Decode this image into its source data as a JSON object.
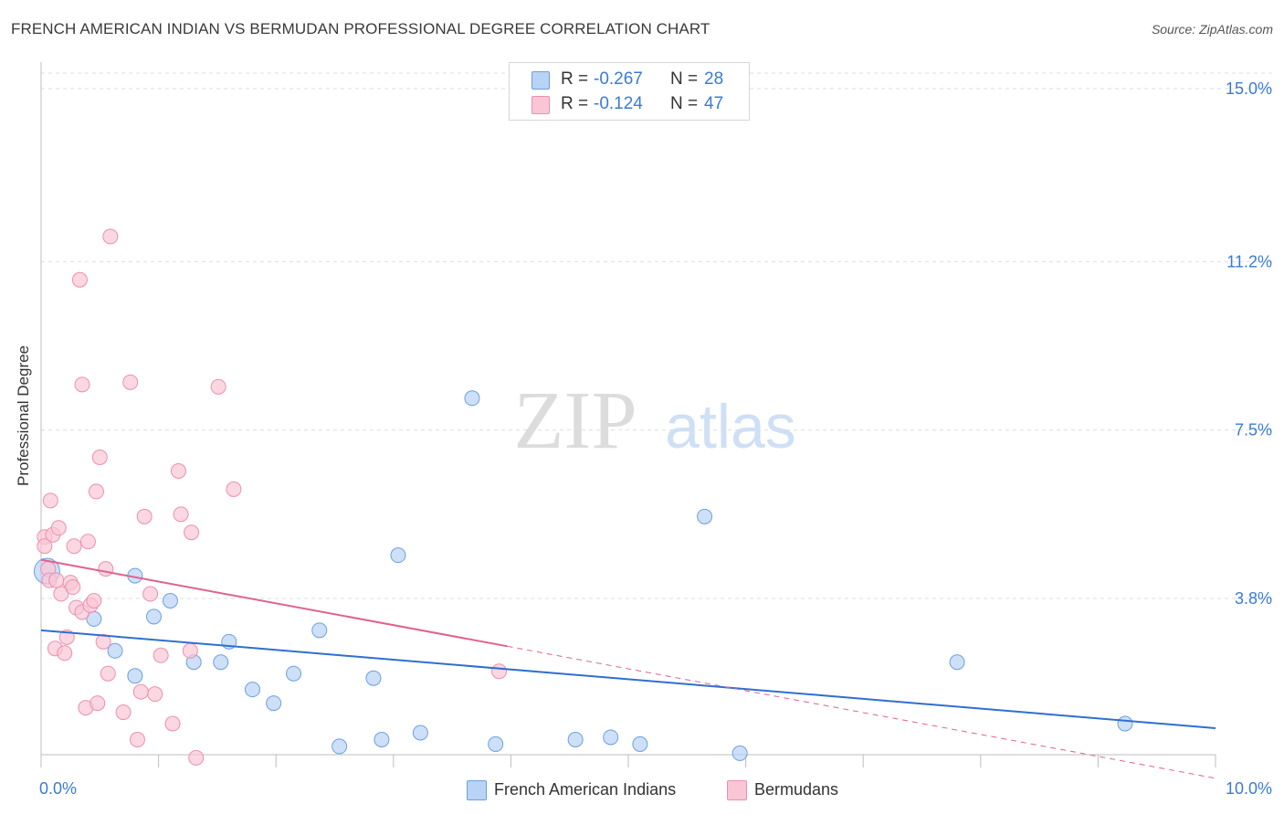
{
  "title": "FRENCH AMERICAN INDIAN VS BERMUDAN PROFESSIONAL DEGREE CORRELATION CHART",
  "source": "Source: ZipAtlas.com",
  "watermark": {
    "zip": "ZIP",
    "atlas": "atlas"
  },
  "legend_top": {
    "rows": [
      {
        "r_label": "R =",
        "r_value": "-0.267",
        "n_label": "N =",
        "n_value": "28",
        "color": "#b8d3f5",
        "border": "#6b9fe0"
      },
      {
        "r_label": "R =",
        "r_value": "-0.124",
        "n_label": "N =",
        "n_value": "47",
        "color": "#f9c6d6",
        "border": "#ec8fae"
      }
    ]
  },
  "legend_bottom": [
    {
      "label": "French American Indians",
      "color": "#b8d3f5",
      "border": "#6b9fe0"
    },
    {
      "label": "Bermudans",
      "color": "#f9c6d6",
      "border": "#ec8fae"
    }
  ],
  "chart_data": {
    "type": "scatter",
    "title": "FRENCH AMERICAN INDIAN VS BERMUDAN PROFESSIONAL DEGREE CORRELATION CHART",
    "xlabel": "",
    "ylabel": "Professional Degree",
    "xlim": [
      0,
      10
    ],
    "ylim": [
      0,
      15.5
    ],
    "x_ticks_labels": [
      "0.0%",
      "10.0%"
    ],
    "y_ticks": [
      3.8,
      7.5,
      11.2,
      15.0
    ],
    "y_ticks_labels": [
      "3.8%",
      "7.5%",
      "11.2%",
      "15.0%"
    ],
    "grid": true,
    "legend_position": "top-center",
    "series": [
      {
        "name": "French American Indians",
        "color": "#6b9fe0",
        "fill": "#b8d3f5",
        "trend_color": "#2f6fd0",
        "trend": {
          "x0": 0,
          "y0": 3.1,
          "x1": 10,
          "y1": 0.95
        },
        "points": [
          [
            0.05,
            4.4
          ],
          [
            0.45,
            3.35
          ],
          [
            0.63,
            2.65
          ],
          [
            0.8,
            4.3
          ],
          [
            0.8,
            2.1
          ],
          [
            0.96,
            3.4
          ],
          [
            1.1,
            3.75
          ],
          [
            1.3,
            2.4
          ],
          [
            1.53,
            2.4
          ],
          [
            1.6,
            2.85
          ],
          [
            1.8,
            1.8
          ],
          [
            1.98,
            1.5
          ],
          [
            2.15,
            2.15
          ],
          [
            2.37,
            3.1
          ],
          [
            2.54,
            0.55
          ],
          [
            2.83,
            2.05
          ],
          [
            2.9,
            0.7
          ],
          [
            3.04,
            4.75
          ],
          [
            3.23,
            0.85
          ],
          [
            3.67,
            8.2
          ],
          [
            3.87,
            0.6
          ],
          [
            4.55,
            0.7
          ],
          [
            4.85,
            0.75
          ],
          [
            5.1,
            0.6
          ],
          [
            5.65,
            5.6
          ],
          [
            5.95,
            0.4
          ],
          [
            7.8,
            2.4
          ],
          [
            9.23,
            1.05
          ]
        ]
      },
      {
        "name": "Bermudans",
        "color": "#ec8fae",
        "fill": "#f9c6d6",
        "trend_color": "#e0628e",
        "trend": {
          "x0": 0,
          "y0": 4.65,
          "x1": 3.97,
          "y1": 2.75
        },
        "trend_dashed": {
          "x0": 3.97,
          "y0": 2.75,
          "x1": 10,
          "y1": -0.15
        },
        "points": [
          [
            0.03,
            5.15
          ],
          [
            0.03,
            4.95
          ],
          [
            0.06,
            4.45
          ],
          [
            0.07,
            4.2
          ],
          [
            0.08,
            5.95
          ],
          [
            0.1,
            5.2
          ],
          [
            0.12,
            2.7
          ],
          [
            0.13,
            4.2
          ],
          [
            0.15,
            5.35
          ],
          [
            0.17,
            3.9
          ],
          [
            0.2,
            2.6
          ],
          [
            0.22,
            2.95
          ],
          [
            0.25,
            4.15
          ],
          [
            0.27,
            4.05
          ],
          [
            0.28,
            4.95
          ],
          [
            0.3,
            3.6
          ],
          [
            0.33,
            10.8
          ],
          [
            0.35,
            3.5
          ],
          [
            0.35,
            8.5
          ],
          [
            0.38,
            1.4
          ],
          [
            0.4,
            5.05
          ],
          [
            0.42,
            3.65
          ],
          [
            0.45,
            3.75
          ],
          [
            0.47,
            6.15
          ],
          [
            0.48,
            1.5
          ],
          [
            0.5,
            6.9
          ],
          [
            0.53,
            2.85
          ],
          [
            0.55,
            4.45
          ],
          [
            0.57,
            2.15
          ],
          [
            0.59,
            11.75
          ],
          [
            0.7,
            1.3
          ],
          [
            0.76,
            8.55
          ],
          [
            0.82,
            0.7
          ],
          [
            0.85,
            1.75
          ],
          [
            0.88,
            5.6
          ],
          [
            0.93,
            3.9
          ],
          [
            0.97,
            1.7
          ],
          [
            1.02,
            2.55
          ],
          [
            1.12,
            1.05
          ],
          [
            1.17,
            6.6
          ],
          [
            1.19,
            5.65
          ],
          [
            1.27,
            2.65
          ],
          [
            1.28,
            5.25
          ],
          [
            1.32,
            0.3
          ],
          [
            1.51,
            8.45
          ],
          [
            1.64,
            6.2
          ],
          [
            3.9,
            2.2
          ]
        ]
      }
    ]
  }
}
